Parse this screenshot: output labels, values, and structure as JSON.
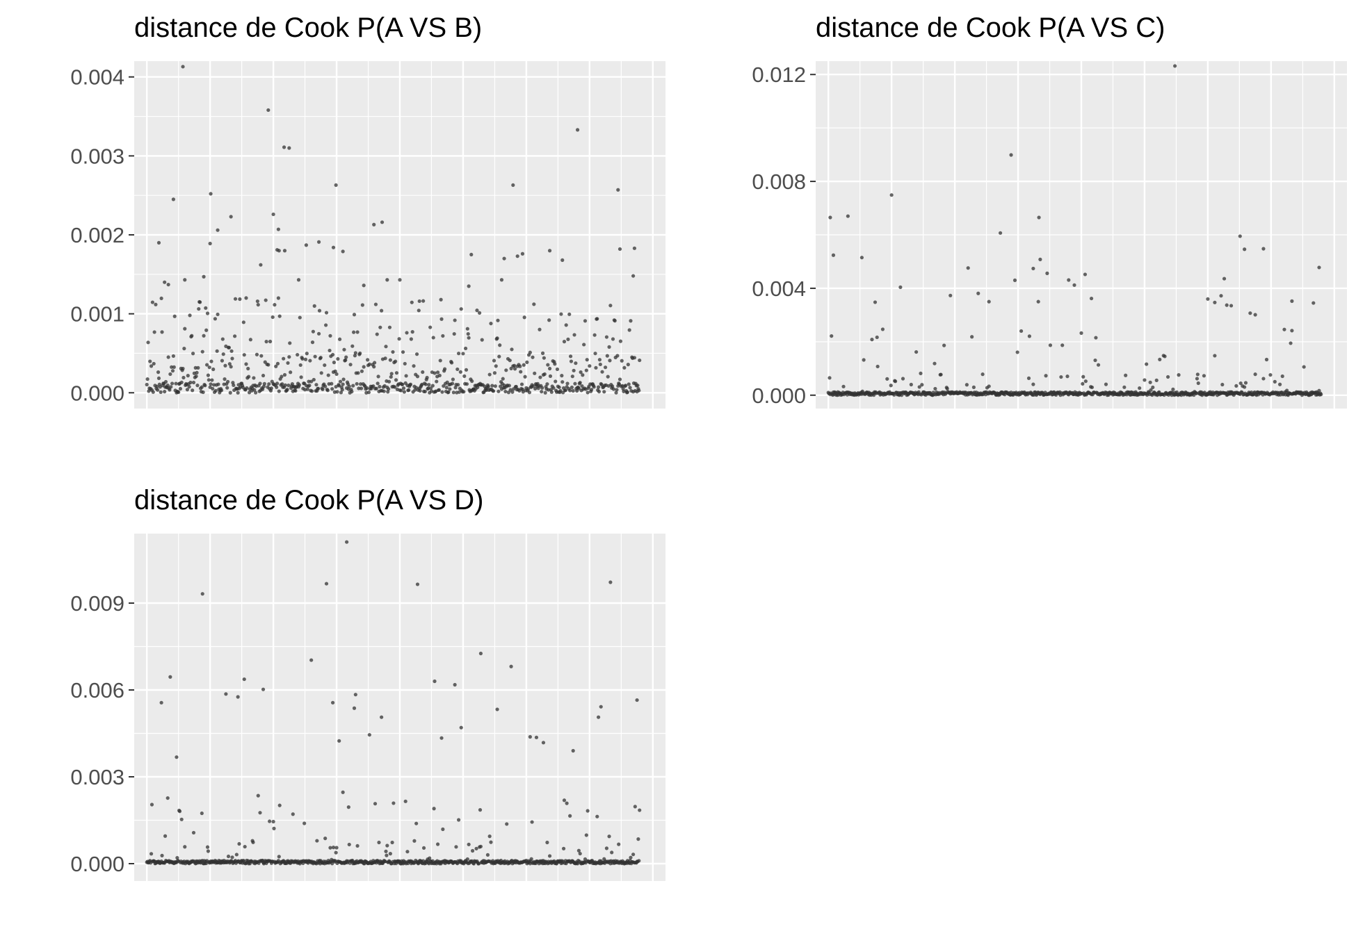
{
  "chart_data": [
    {
      "type": "scatter",
      "title": "distance de Cook P(A VS B)",
      "xlabel": "",
      "ylabel": "",
      "ylim": [
        -0.0002,
        0.0042
      ],
      "yticks": [
        0.0,
        0.001,
        0.002,
        0.003,
        0.004
      ],
      "ytick_labels": [
        "0.000",
        "0.001",
        "0.002",
        "0.003",
        "0.004"
      ],
      "xlim": [
        -20,
        820
      ],
      "n_points": 780,
      "background_color": "#ebebeb",
      "point_color": "#333333",
      "grid": true,
      "legend": "none",
      "highlights": [
        {
          "x": 57,
          "y": 0.00413
        },
        {
          "x": 192,
          "y": 0.00358
        },
        {
          "x": 217,
          "y": 0.00311
        },
        {
          "x": 225,
          "y": 0.0031
        },
        {
          "x": 681,
          "y": 0.00333
        },
        {
          "x": 42,
          "y": 0.00245
        },
        {
          "x": 101,
          "y": 0.00252
        },
        {
          "x": 299,
          "y": 0.00263
        },
        {
          "x": 579,
          "y": 0.00263
        },
        {
          "x": 745,
          "y": 0.00257
        },
        {
          "x": 200,
          "y": 0.00226
        },
        {
          "x": 208,
          "y": 0.00207
        },
        {
          "x": 133,
          "y": 0.00223
        },
        {
          "x": 112,
          "y": 0.00206
        },
        {
          "x": 359,
          "y": 0.00213
        },
        {
          "x": 372,
          "y": 0.00216
        },
        {
          "x": 19,
          "y": 0.0019
        },
        {
          "x": 100,
          "y": 0.00189
        },
        {
          "x": 209,
          "y": 0.0018
        },
        {
          "x": 180,
          "y": 0.00162
        },
        {
          "x": 206,
          "y": 0.00181
        },
        {
          "x": 218,
          "y": 0.0018
        },
        {
          "x": 252,
          "y": 0.00187
        },
        {
          "x": 272,
          "y": 0.00191
        },
        {
          "x": 295,
          "y": 0.00184
        },
        {
          "x": 310,
          "y": 0.00179
        },
        {
          "x": 513,
          "y": 0.00175
        },
        {
          "x": 565,
          "y": 0.0017
        },
        {
          "x": 586,
          "y": 0.00173
        },
        {
          "x": 594,
          "y": 0.00176
        },
        {
          "x": 637,
          "y": 0.0018
        },
        {
          "x": 657,
          "y": 0.00168
        },
        {
          "x": 748,
          "y": 0.00182
        },
        {
          "x": 771,
          "y": 0.00183
        },
        {
          "x": 28,
          "y": 0.0014
        },
        {
          "x": 34,
          "y": 0.00137
        },
        {
          "x": 60,
          "y": 0.00143
        },
        {
          "x": 90,
          "y": 0.00147
        },
        {
          "x": 157,
          "y": 0.0012
        },
        {
          "x": 240,
          "y": 0.00143
        },
        {
          "x": 343,
          "y": 0.00136
        },
        {
          "x": 380,
          "y": 0.00143
        },
        {
          "x": 400,
          "y": 0.00143
        },
        {
          "x": 431,
          "y": 0.00116
        },
        {
          "x": 509,
          "y": 0.00135
        },
        {
          "x": 561,
          "y": 0.00143
        },
        {
          "x": 769,
          "y": 0.00148
        }
      ]
    },
    {
      "type": "scatter",
      "title": "distance de Cook P(A VS C)",
      "xlabel": "",
      "ylabel": "",
      "ylim": [
        -0.0005,
        0.0125
      ],
      "yticks": [
        0.0,
        0.004,
        0.008,
        0.012
      ],
      "ytick_labels": [
        "0.000",
        "0.004",
        "0.008",
        "0.012"
      ],
      "xlim": [
        -20,
        820
      ],
      "n_points": 780,
      "background_color": "#ebebeb",
      "point_color": "#333333",
      "grid": true,
      "legend": "none",
      "highlights": [
        {
          "x": 548,
          "y": 0.01232
        },
        {
          "x": 289,
          "y": 0.00899
        },
        {
          "x": 100,
          "y": 0.00749
        },
        {
          "x": 3,
          "y": 0.00665
        },
        {
          "x": 31,
          "y": 0.0067
        },
        {
          "x": 333,
          "y": 0.00665
        },
        {
          "x": 272,
          "y": 0.00607
        },
        {
          "x": 651,
          "y": 0.00595
        },
        {
          "x": 658,
          "y": 0.00546
        },
        {
          "x": 688,
          "y": 0.00548
        },
        {
          "x": 8,
          "y": 0.00524
        },
        {
          "x": 53,
          "y": 0.00515
        },
        {
          "x": 335,
          "y": 0.00508
        },
        {
          "x": 324,
          "y": 0.00474
        },
        {
          "x": 221,
          "y": 0.00476
        },
        {
          "x": 776,
          "y": 0.00478
        },
        {
          "x": 346,
          "y": 0.00456
        },
        {
          "x": 406,
          "y": 0.00452
        },
        {
          "x": 114,
          "y": 0.00404
        },
        {
          "x": 380,
          "y": 0.00431
        },
        {
          "x": 389,
          "y": 0.00412
        },
        {
          "x": 295,
          "y": 0.0043
        },
        {
          "x": 626,
          "y": 0.00436
        },
        {
          "x": 193,
          "y": 0.00373
        },
        {
          "x": 237,
          "y": 0.00381
        },
        {
          "x": 254,
          "y": 0.0035
        },
        {
          "x": 332,
          "y": 0.0035
        },
        {
          "x": 416,
          "y": 0.00362
        },
        {
          "x": 74,
          "y": 0.00348
        },
        {
          "x": 621,
          "y": 0.00372
        },
        {
          "x": 611,
          "y": 0.00347
        },
        {
          "x": 733,
          "y": 0.00352
        },
        {
          "x": 767,
          "y": 0.00345
        },
        {
          "x": 630,
          "y": 0.00337
        },
        {
          "x": 637,
          "y": 0.00335
        },
        {
          "x": 600,
          "y": 0.0036
        },
        {
          "x": 667,
          "y": 0.00307
        },
        {
          "x": 675,
          "y": 0.00301
        }
      ]
    },
    {
      "type": "scatter",
      "title": "distance de Cook P(A VS D)",
      "xlabel": "",
      "ylabel": "",
      "ylim": [
        -0.0006,
        0.0114
      ],
      "yticks": [
        0.0,
        0.003,
        0.006,
        0.009
      ],
      "ytick_labels": [
        "0.000",
        "0.003",
        "0.006",
        "0.009"
      ],
      "xlim": [
        -20,
        820
      ],
      "n_points": 780,
      "background_color": "#ebebeb",
      "point_color": "#333333",
      "grid": true,
      "legend": "none",
      "highlights": [
        {
          "x": 316,
          "y": 0.01111
        },
        {
          "x": 88,
          "y": 0.00932
        },
        {
          "x": 284,
          "y": 0.00967
        },
        {
          "x": 428,
          "y": 0.00965
        },
        {
          "x": 733,
          "y": 0.00972
        },
        {
          "x": 260,
          "y": 0.00703
        },
        {
          "x": 528,
          "y": 0.00726
        },
        {
          "x": 576,
          "y": 0.00681
        },
        {
          "x": 37,
          "y": 0.00645
        },
        {
          "x": 154,
          "y": 0.00637
        },
        {
          "x": 455,
          "y": 0.0063
        },
        {
          "x": 487,
          "y": 0.00618
        },
        {
          "x": 184,
          "y": 0.00602
        },
        {
          "x": 125,
          "y": 0.00586
        },
        {
          "x": 144,
          "y": 0.00576
        },
        {
          "x": 330,
          "y": 0.00584
        },
        {
          "x": 23,
          "y": 0.00556
        },
        {
          "x": 294,
          "y": 0.00556
        },
        {
          "x": 328,
          "y": 0.00537
        },
        {
          "x": 718,
          "y": 0.00542
        },
        {
          "x": 775,
          "y": 0.00565
        },
        {
          "x": 371,
          "y": 0.00506
        },
        {
          "x": 714,
          "y": 0.00506
        },
        {
          "x": 554,
          "y": 0.00533
        },
        {
          "x": 497,
          "y": 0.0047
        },
        {
          "x": 47,
          "y": 0.00368
        },
        {
          "x": 304,
          "y": 0.00424
        },
        {
          "x": 352,
          "y": 0.00445
        },
        {
          "x": 466,
          "y": 0.00434
        },
        {
          "x": 606,
          "y": 0.00438
        },
        {
          "x": 616,
          "y": 0.00436
        },
        {
          "x": 627,
          "y": 0.00418
        },
        {
          "x": 674,
          "y": 0.0039
        }
      ]
    }
  ]
}
